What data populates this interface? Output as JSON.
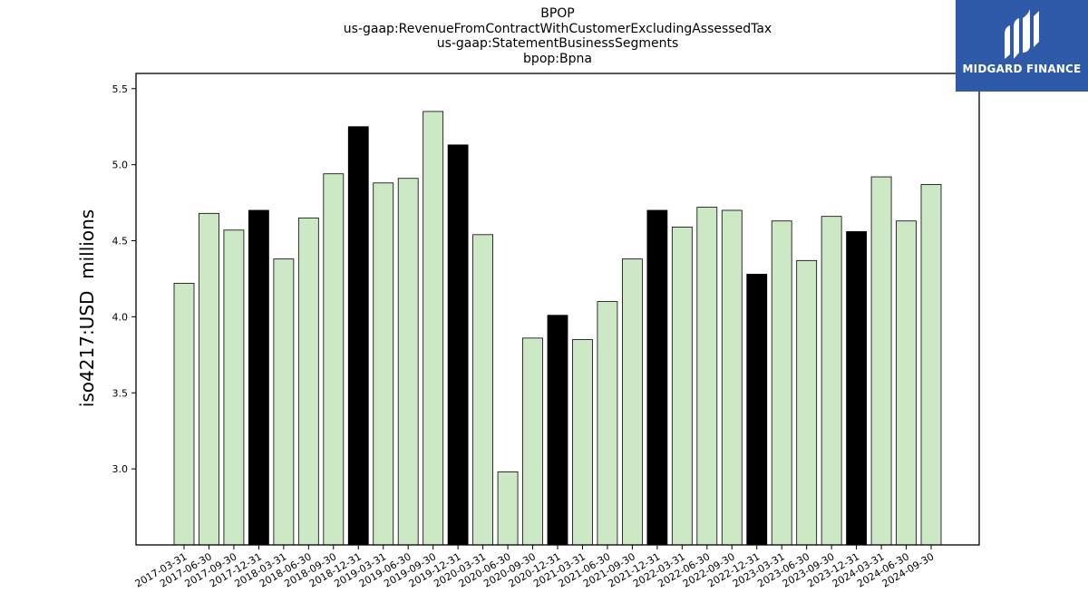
{
  "titles": [
    "BPOP",
    "us-gaap:RevenueFromContractWithCustomerExcludingAssessedTax",
    "us-gaap:StatementBusinessSegments",
    "bpop:Bpna"
  ],
  "logo_text": "MIDGARD FINANCE",
  "colors": {
    "normal": "#cce8c4",
    "q4": "#000000",
    "logo_bg": "#2f5aa8"
  },
  "chart_data": {
    "type": "bar",
    "title": "BPOP",
    "ylabel": "iso4217:USD  millions",
    "ylim": [
      2.5,
      5.6
    ],
    "yticks": [
      "3.0",
      "3.5",
      "4.0",
      "4.5",
      "5.0",
      "5.5"
    ],
    "categories": [
      "2017-03-31",
      "2017-06-30",
      "2017-09-30",
      "2017-12-31",
      "2018-03-31",
      "2018-06-30",
      "2018-09-30",
      "2018-12-31",
      "2019-03-31",
      "2019-06-30",
      "2019-09-30",
      "2019-12-31",
      "2020-03-31",
      "2020-06-30",
      "2020-09-30",
      "2020-12-31",
      "2021-03-31",
      "2021-06-30",
      "2021-09-30",
      "2021-12-31",
      "2022-03-31",
      "2022-06-30",
      "2022-09-30",
      "2022-12-31",
      "2023-03-31",
      "2023-06-30",
      "2023-09-30",
      "2023-12-31",
      "2024-03-31",
      "2024-06-30",
      "2024-09-30"
    ],
    "values": [
      4.22,
      4.68,
      4.57,
      4.7,
      4.38,
      4.65,
      4.94,
      5.25,
      4.88,
      4.91,
      5.35,
      5.13,
      4.54,
      2.98,
      3.86,
      4.01,
      3.85,
      4.1,
      4.38,
      4.7,
      4.59,
      4.72,
      4.7,
      4.28,
      4.63,
      4.37,
      4.66,
      4.56,
      4.92,
      4.63,
      4.87
    ],
    "highlight": [
      false,
      false,
      false,
      true,
      false,
      false,
      false,
      true,
      false,
      false,
      false,
      true,
      false,
      false,
      false,
      true,
      false,
      false,
      false,
      true,
      false,
      false,
      false,
      true,
      false,
      false,
      false,
      true,
      false,
      false,
      false
    ]
  }
}
